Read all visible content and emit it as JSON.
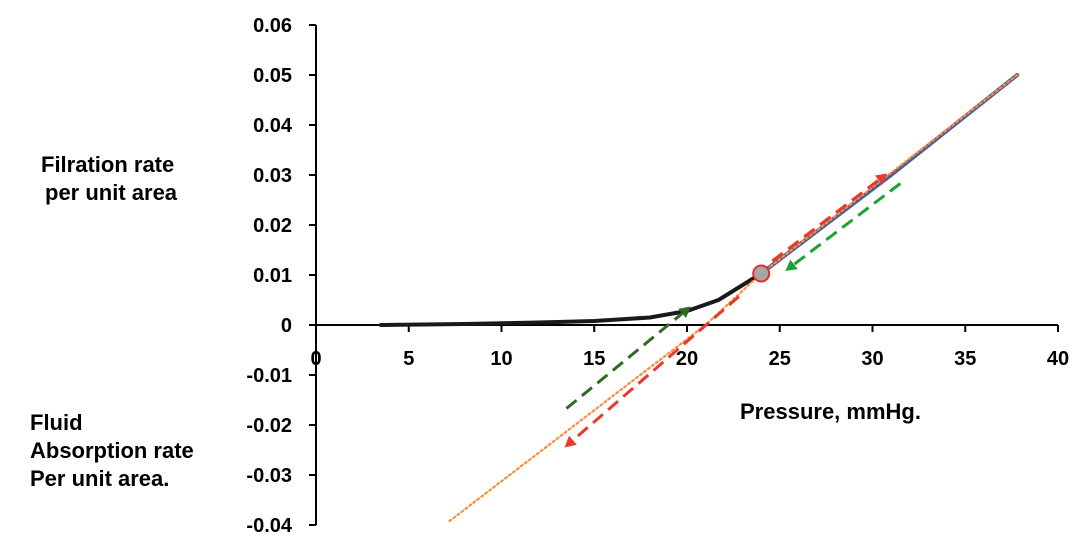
{
  "labels": {
    "filtration_line1": "Filration rate",
    "filtration_line2": "per unit area",
    "absorption_line1": "Fluid",
    "absorption_line2": "Absorption rate",
    "absorption_line3": "Per unit area.",
    "xlabel": "Pressure, mmHg."
  },
  "chart_data": {
    "type": "line",
    "title": "",
    "xlabel": "Pressure, mmHg.",
    "ylabel": "",
    "xlim": [
      0,
      40
    ],
    "ylim": [
      -0.04,
      0.06
    ],
    "x_ticks": [
      0,
      5,
      10,
      15,
      20,
      25,
      30,
      35,
      40
    ],
    "y_ticks": [
      0.06,
      0.05,
      0.04,
      0.03,
      0.02,
      0.01,
      0,
      -0.01,
      -0.02,
      -0.03,
      -0.04
    ],
    "y_tick_labels": [
      "0.06",
      "0.05",
      "0.04",
      "0.03",
      "0.02",
      "0.01",
      "0",
      "-0.01",
      "-0.02",
      "-0.03",
      "-0.04"
    ],
    "grid": false,
    "series": [
      {
        "style": "solid-black",
        "color": "#1a1a1a",
        "points": [
          [
            3.5,
            0
          ],
          [
            8,
            0.0002
          ],
          [
            12,
            0.0005
          ],
          [
            15,
            0.0008
          ],
          [
            18,
            0.0015
          ],
          [
            20,
            0.0028
          ],
          [
            21.7,
            0.005
          ],
          [
            24,
            0.0103
          ]
        ]
      },
      {
        "style": "solid-blue",
        "color": "#4a5f9a",
        "points": [
          [
            24,
            0.0103
          ],
          [
            31,
            0.03
          ],
          [
            37.8,
            0.05
          ]
        ]
      },
      {
        "style": "dotted-orange",
        "color": "#ff8c3a",
        "points": [
          [
            7.2,
            -0.0392
          ],
          [
            21,
            0.0
          ],
          [
            24,
            0.0103
          ],
          [
            37.8,
            0.05
          ]
        ]
      }
    ],
    "marker": {
      "x": 24,
      "y": 0.0103,
      "fill": "#a6a6a6",
      "stroke": "#e03030"
    },
    "arrows": [
      {
        "color": "#e53b2e",
        "from": [
          24.6,
          0.0128
        ],
        "to": [
          30.8,
          0.0303
        ]
      },
      {
        "color": "#1ea132",
        "from": [
          31.5,
          0.0283
        ],
        "to": [
          25.3,
          0.0108
        ]
      },
      {
        "color": "#2e6b23",
        "from": [
          13.5,
          -0.0167
        ],
        "to": [
          20.2,
          0.0037
        ]
      },
      {
        "color": "#e53b2e",
        "from": [
          22.8,
          0.0057
        ],
        "to": [
          13.4,
          -0.0245
        ]
      }
    ]
  }
}
